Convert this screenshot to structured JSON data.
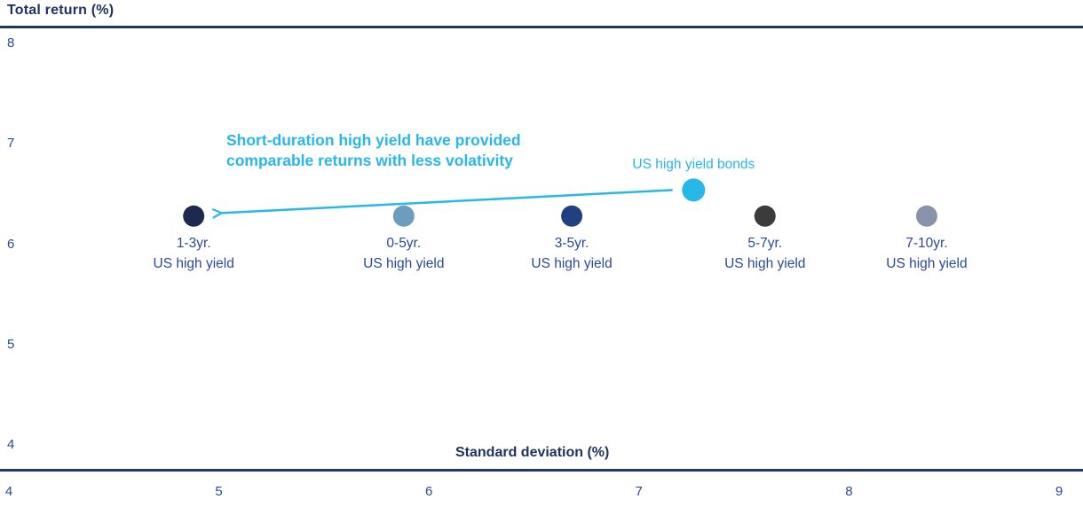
{
  "annotation": {
    "line1": "Short-duration high yield have provided",
    "line2": "comparable returns with less volativity"
  },
  "colors": {
    "title_navy": "#1e3361",
    "axis_line_navy": "#203864",
    "label_navy": "#2b4a94",
    "cyan": "#29b6e8"
  },
  "chart_data": {
    "type": "scatter",
    "title": "Total return (%)",
    "xlabel": "Standard deviation (%)",
    "ylabel": "Total return (%)",
    "xlim": [
      4,
      9
    ],
    "ylim": [
      4,
      8
    ],
    "x_ticks": [
      4,
      5,
      6,
      7,
      8,
      9
    ],
    "y_ticks": [
      8,
      7,
      6,
      5,
      4
    ],
    "grid": false,
    "legend": false,
    "points": [
      {
        "name": "1-3yr. US high yield",
        "label_line1": "1-3yr.",
        "label_line2": "US high yield",
        "x": 4.88,
        "y": 6.28,
        "color": "#1b2a4e",
        "radius": 12,
        "label_position": "below"
      },
      {
        "name": "0-5yr. US high yield",
        "label_line1": "0-5yr.",
        "label_line2": "US high yield",
        "x": 5.88,
        "y": 6.28,
        "color": "#6d9cbf",
        "radius": 12,
        "label_position": "below"
      },
      {
        "name": "3-5yr. US high yield",
        "label_line1": "3-5yr.",
        "label_line2": "US high yield",
        "x": 6.68,
        "y": 6.28,
        "color": "#21407f",
        "radius": 12,
        "label_position": "below"
      },
      {
        "name": "US high yield bonds",
        "label_line1": "US high yield bonds",
        "label_line2": "",
        "x": 7.26,
        "y": 6.54,
        "color": "#29b6e8",
        "radius": 13,
        "label_position": "above"
      },
      {
        "name": "5-7yr. US high yield",
        "label_line1": "5-7yr.",
        "label_line2": "US high yield",
        "x": 7.6,
        "y": 6.28,
        "color": "#3b3b3b",
        "radius": 12,
        "label_position": "below"
      },
      {
        "name": "7-10yr. US high yield",
        "label_line1": "7-10yr.",
        "label_line2": "US high yield",
        "x": 8.37,
        "y": 6.28,
        "color": "#8794aa",
        "radius": 12,
        "label_position": "below"
      }
    ],
    "arrow": {
      "from_x": 7.16,
      "from_y": 6.54,
      "to_x": 5.01,
      "to_y": 6.31,
      "color": "#29b6e8"
    }
  }
}
